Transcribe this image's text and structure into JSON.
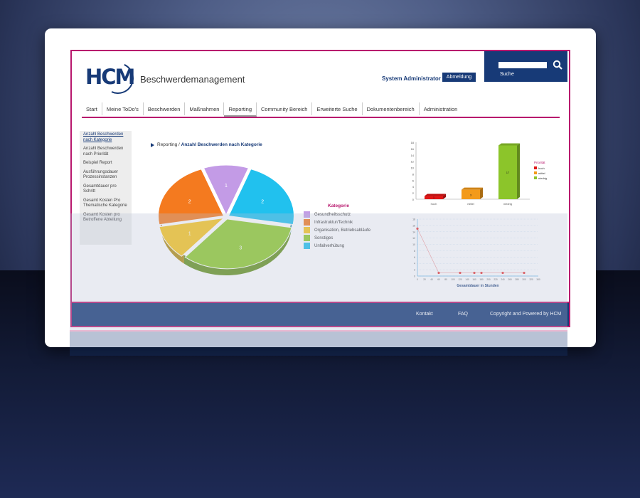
{
  "header": {
    "app_title": "Beschwerdemanagement",
    "logo": "HCM",
    "user_name": "System Administrator",
    "logout_label": "Abmeldung",
    "search_label": "Suche"
  },
  "nav": [
    "Start",
    "Meine ToDo's",
    "Beschwerden",
    "Maßnahmen",
    "Reporting",
    "Community Bereich",
    "Erweiterte Suche",
    "Dokumentenbereich",
    "Administration"
  ],
  "sidebar": [
    "Anzahl Beschwerden nach Kategorie",
    "Anzahl Beschwerden nach Priorität",
    "Beispiel Report",
    "Ausführungsdauer Prozessinstanzen",
    "Gesamtdauer pro Schritt",
    "Gesamt Kosten Pro Thematische Kategorie",
    "Gesamt Kosten pro Betroffene Abteilung"
  ],
  "breadcrumb": {
    "root": "Reporting",
    "current": "Anzahl Beschwerden nach Kategorie"
  },
  "footer": {
    "contact": "Kontakt",
    "faq": "FAQ",
    "copyright": "Copyright and Powered by HCM"
  },
  "colors": {
    "brand": "#173a77",
    "accent": "#b8176d"
  },
  "chart_data": [
    {
      "type": "pie",
      "legend_title": "Kategorie",
      "categories": [
        "Gesundheitsschutz",
        "Infrastruktur/Technik",
        "Organisation, Betriebsabläufe",
        "Sonstiges",
        "Unfallverhütung"
      ],
      "values": [
        1,
        2,
        1,
        3,
        2
      ],
      "colors": [
        "#c39be6",
        "#f47a1f",
        "#f8c51d",
        "#8fcb2b",
        "#21c1ee"
      ]
    },
    {
      "type": "bar",
      "categories": [
        "hoch",
        "mittel",
        "niedrig"
      ],
      "values": [
        1,
        3,
        17
      ],
      "colors": [
        "#e01515",
        "#f39a1a",
        "#8cc52a"
      ],
      "legend_title": "Priorität",
      "ylim": [
        0,
        18
      ],
      "yticks": [
        0,
        2,
        4,
        6,
        8,
        10,
        12,
        14,
        16,
        18
      ]
    },
    {
      "type": "line",
      "xlabel": "Gesamtdauer in Stunden",
      "x": [
        0,
        60,
        120,
        160,
        180,
        240,
        300
      ],
      "y": [
        15,
        1,
        1,
        1,
        1,
        1,
        1
      ],
      "xticks": [
        0,
        20,
        40,
        60,
        80,
        100,
        120,
        140,
        160,
        180,
        200,
        220,
        240,
        260,
        280,
        300,
        320,
        340
      ],
      "ylim": [
        0,
        18
      ],
      "yticks": [
        0,
        2,
        4,
        6,
        8,
        10,
        12,
        14,
        16,
        18
      ]
    }
  ]
}
